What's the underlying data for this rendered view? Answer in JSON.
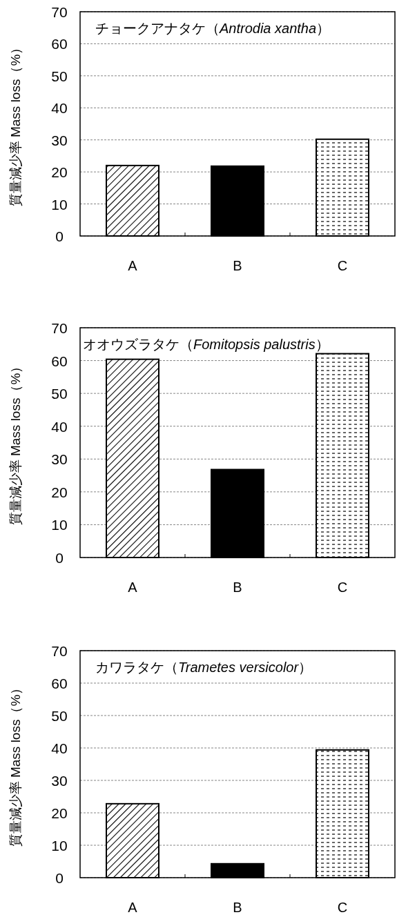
{
  "chart_data": [
    {
      "type": "bar",
      "title": "チョークアナタケ（Antrodia xantha）",
      "ylabel": "質量減少率 Mass loss（%）",
      "categories": [
        "A",
        "B",
        "C"
      ],
      "values": [
        22.0,
        21.8,
        30.2
      ],
      "colors": [
        "#000000",
        "#000000",
        "#000000"
      ],
      "ylim": [
        0,
        70
      ],
      "yticks": [
        0,
        10,
        20,
        30,
        40,
        50,
        60,
        70
      ],
      "grid": "y"
    },
    {
      "type": "bar",
      "title": "オオウズラタケ（Fomitopsis palustris）",
      "ylabel": "質量減少率 Mass loss（%）",
      "categories": [
        "A",
        "B",
        "C"
      ],
      "values": [
        60.4,
        26.8,
        62.1
      ],
      "colors": [
        "#000000",
        "#000000",
        "#000000"
      ],
      "ylim": [
        0,
        70
      ],
      "yticks": [
        0,
        10,
        20,
        30,
        40,
        50,
        60,
        70
      ],
      "grid": "y"
    },
    {
      "type": "bar",
      "title": "カワラタケ（Trametes versicolor）",
      "ylabel": "質量減少率 Mass loss（%）",
      "categories": [
        "A",
        "B",
        "C"
      ],
      "values": [
        22.8,
        4.3,
        39.4
      ],
      "colors": [
        "#000000",
        "#000000",
        "#000000"
      ],
      "ylim": [
        0,
        70
      ],
      "yticks": [
        0,
        10,
        20,
        30,
        40,
        50,
        60,
        70
      ],
      "grid": "y"
    }
  ]
}
